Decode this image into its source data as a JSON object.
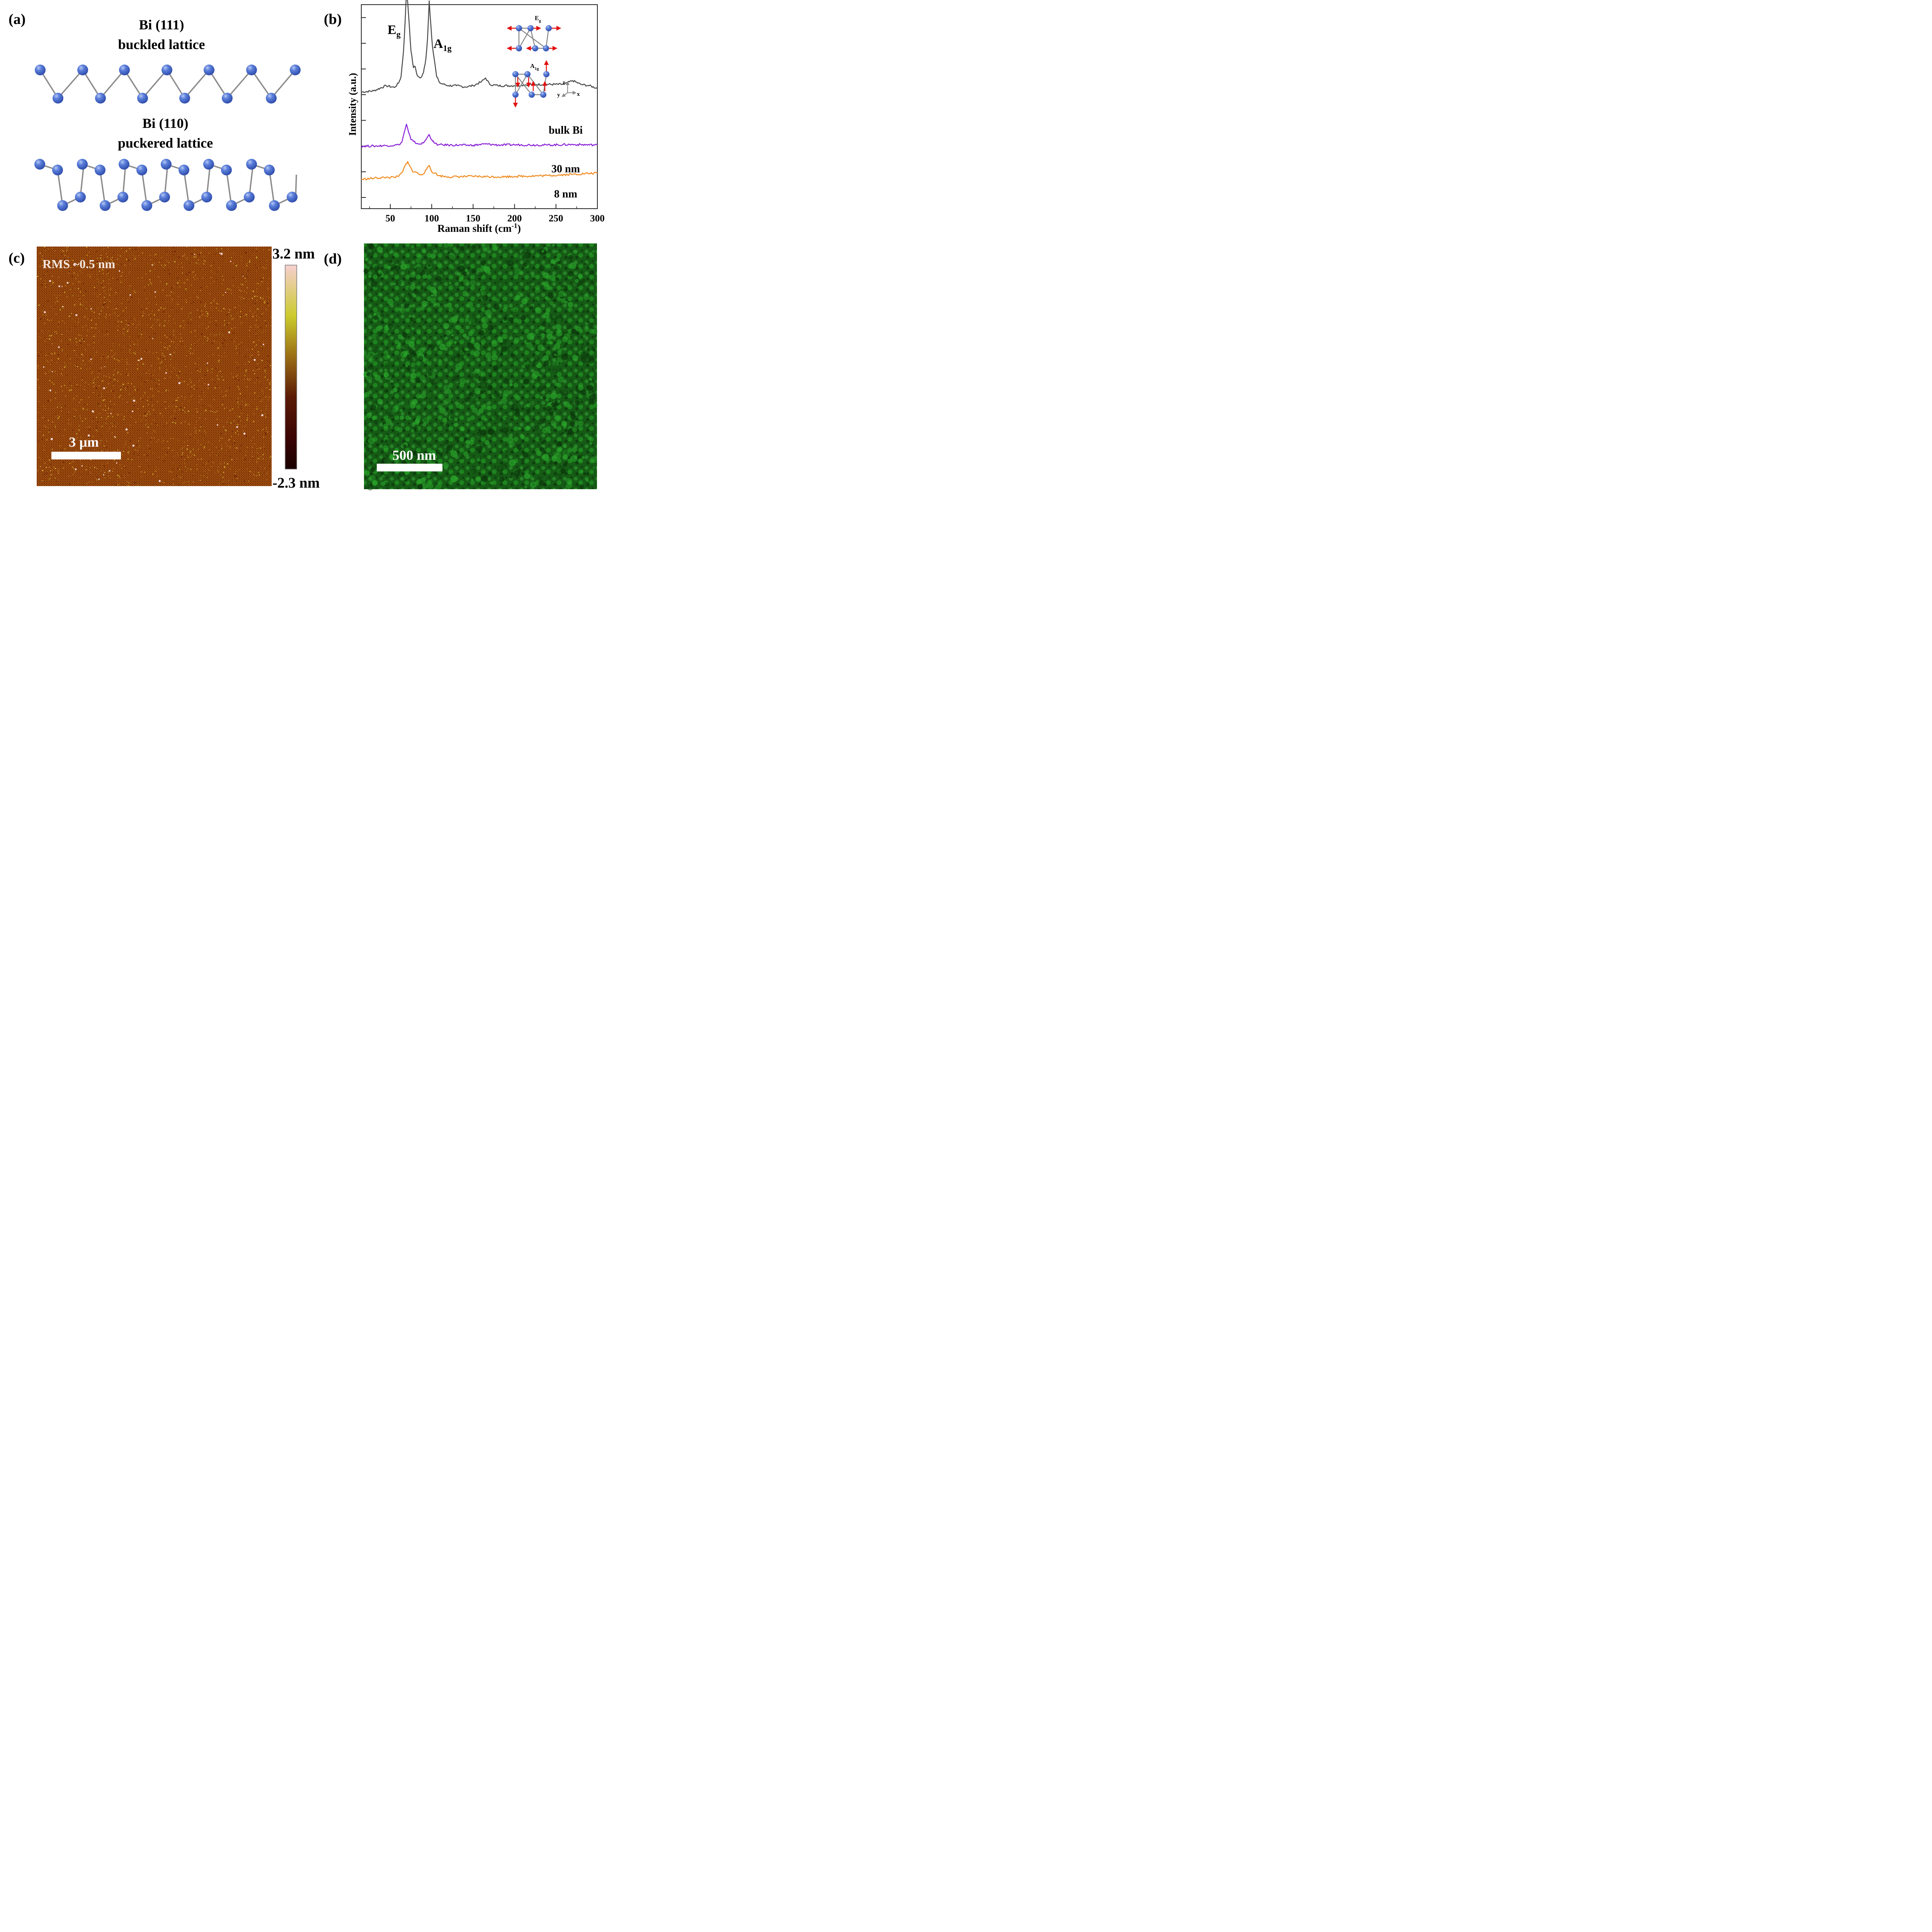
{
  "panels": {
    "a": {
      "label": "(a)",
      "title1_line1": "Bi (111)",
      "title1_line2": "buckled lattice",
      "title2_line1": "Bi (110)",
      "title2_line2": "puckered lattice",
      "atom_color": "#3f63c8",
      "bond_color": "#8a8a8a"
    },
    "b": {
      "label": "(b)",
      "peak_eg_main": "E",
      "peak_eg_sub": "g",
      "peak_a1g_main": "A",
      "peak_a1g_sub": "1g",
      "inset_eg_main": "E",
      "inset_eg_sub": "g",
      "inset_a1g_main": "A",
      "inset_a1g_sub": "1g",
      "axis_z": "z",
      "axis_y": "y",
      "axis_x": "x",
      "arrow_color": "#e01010"
    },
    "c": {
      "label": "(c)",
      "rms": "RMS ~0.5 nm",
      "scale_bar": "3 μm",
      "colorbar_max": "3.2 nm",
      "colorbar_min": "-2.3 nm",
      "colors": [
        "#f3c6c6",
        "#c8c830",
        "#8a5a10",
        "#4a0a0a",
        "#1a0000"
      ]
    },
    "d": {
      "label": "(d)",
      "scale_bar": "500 nm",
      "base_color": "#145a14",
      "highlight_color": "#2ec82e"
    }
  },
  "chart_data": {
    "type": "line",
    "xlabel": "Raman shift (cm",
    "xlabel_sup": "-1",
    "xlabel_end": ")",
    "ylabel": "Intensity (a.u.)",
    "xlim": [
      15,
      300
    ],
    "x_ticks": [
      50,
      100,
      150,
      200,
      250,
      300
    ],
    "x_tick_labels": [
      "50",
      "100",
      "150",
      "200",
      "250",
      "300"
    ],
    "y_ticks": [
      0,
      1,
      2,
      3,
      4,
      5,
      6,
      7
    ],
    "grid": false,
    "series": [
      {
        "name": "bulk Bi",
        "color": "#4a4a4a",
        "offset": 4.1,
        "x": [
          15,
          30,
          45,
          55,
          60,
          63,
          66,
          68,
          69.5,
          71,
          73,
          75,
          78,
          80,
          82,
          84,
          86,
          88,
          90,
          93,
          95,
          97,
          99,
          101,
          103,
          106,
          110,
          120,
          130,
          140,
          150,
          160,
          165,
          170,
          180,
          200,
          220,
          240,
          260,
          270,
          280,
          290,
          300
        ],
        "y": [
          0.0,
          0.05,
          0.25,
          0.18,
          0.35,
          0.6,
          1.6,
          2.8,
          3.85,
          3.5,
          2.6,
          1.6,
          0.95,
          1.0,
          0.7,
          0.6,
          0.55,
          0.6,
          0.75,
          1.3,
          2.1,
          3.55,
          2.6,
          1.75,
          1.3,
          0.6,
          0.35,
          0.25,
          0.25,
          0.2,
          0.25,
          0.4,
          0.55,
          0.3,
          0.25,
          0.25,
          0.3,
          0.3,
          0.3,
          0.45,
          0.3,
          0.25,
          0.15
        ]
      },
      {
        "name": "30 nm",
        "color": "#8a22d6",
        "offset": 2.0,
        "x": [
          15,
          30,
          45,
          55,
          60,
          64,
          67,
          69.5,
          72,
          75,
          78,
          82,
          86,
          90,
          94,
          97,
          100,
          103,
          108,
          120,
          150,
          165,
          180,
          200,
          240,
          270,
          300
        ],
        "y": [
          0.0,
          0.0,
          0.02,
          0.03,
          0.05,
          0.15,
          0.55,
          0.85,
          0.55,
          0.25,
          0.18,
          0.1,
          0.08,
          0.12,
          0.3,
          0.45,
          0.25,
          0.12,
          0.05,
          0.04,
          0.03,
          0.08,
          0.04,
          0.05,
          0.04,
          0.06,
          0.04
        ]
      },
      {
        "name": "8 nm",
        "color": "#f08a1e",
        "offset": 0.7,
        "x": [
          15,
          30,
          45,
          55,
          60,
          65,
          68,
          71,
          74,
          77,
          80,
          85,
          90,
          94,
          97,
          100,
          104,
          108,
          120,
          150,
          180,
          200,
          240,
          270,
          300
        ],
        "y": [
          0.0,
          0.05,
          0.08,
          0.08,
          0.12,
          0.3,
          0.55,
          0.7,
          0.5,
          0.3,
          0.3,
          0.2,
          0.22,
          0.4,
          0.55,
          0.3,
          0.25,
          0.15,
          0.1,
          0.12,
          0.1,
          0.12,
          0.15,
          0.2,
          0.25
        ]
      }
    ]
  }
}
